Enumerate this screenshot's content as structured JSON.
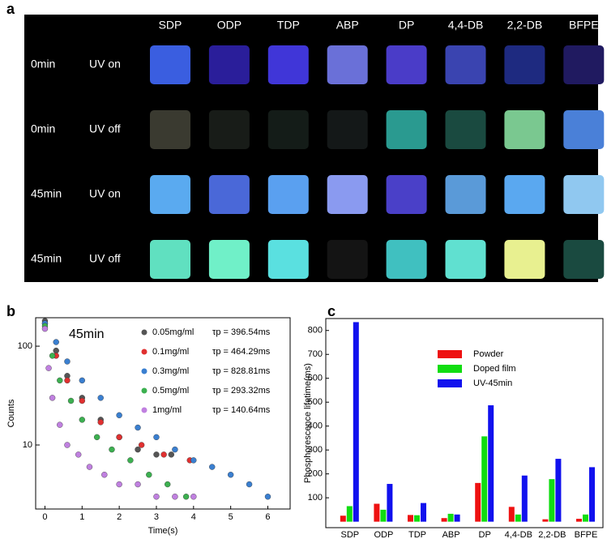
{
  "photo": {
    "label": "a",
    "columns": [
      "SDP",
      "ODP",
      "TDP",
      "ABP",
      "DP",
      "4,4-DB",
      "2,2-DB",
      "BFPE"
    ],
    "rows": [
      {
        "time": "0min",
        "state": "UV on",
        "colors": [
          "#3a5ee0",
          "#2a1e9a",
          "#4036d8",
          "#6a70d8",
          "#4a3cc8",
          "#3a44b0",
          "#1e2a80",
          "#201a60"
        ]
      },
      {
        "time": "0min",
        "state": "UV off",
        "colors": [
          "#3a3a30",
          "#181c18",
          "#141c18",
          "#141818",
          "#2a9a90",
          "#1a4a40",
          "#7ac890",
          "#4a80d8"
        ]
      },
      {
        "time": "45min",
        "state": "UV on",
        "colors": [
          "#5aaaf0",
          "#4a68d8",
          "#5aa0f0",
          "#8a9af0",
          "#4a40c8",
          "#5a9ad8",
          "#5aa8f0",
          "#90c8f0"
        ]
      },
      {
        "time": "45min",
        "state": "UV off",
        "colors": [
          "#60e0c0",
          "#70f0c8",
          "#5ae0e0",
          "#141414",
          "#40c0c0",
          "#60e0d0",
          "#e8f090",
          "#1a4a40"
        ]
      }
    ]
  },
  "chart_data": [
    {
      "type": "scatter",
      "panel_label": "b",
      "annotation": "45min",
      "x_label": "Time(s)",
      "y_label": "Counts",
      "log_y": true,
      "xlim": [
        -0.25,
        6.6
      ],
      "xticks": [
        0,
        1,
        2,
        3,
        4,
        5,
        6
      ],
      "ylim": [
        2.25,
        194
      ],
      "yticks": [
        10,
        100
      ],
      "series": [
        {
          "name": "0.05mg/ml",
          "lifetime": "τp = 396.54ms",
          "color": "#555555",
          "x": [
            0,
            0.3,
            0.6,
            1,
            1.5,
            2,
            2.5,
            3,
            3.4
          ],
          "values": [
            180,
            90,
            50,
            30,
            18,
            12,
            9,
            8,
            8
          ]
        },
        {
          "name": "0.1mg/ml",
          "lifetime": "τp = 464.29ms",
          "color": "#e03030",
          "x": [
            0,
            0.3,
            0.6,
            1,
            1.5,
            2,
            2.6,
            3.2,
            3.9
          ],
          "values": [
            170,
            80,
            45,
            28,
            17,
            12,
            10,
            8,
            7
          ]
        },
        {
          "name": "0.3mg/ml",
          "lifetime": "τp = 828.81ms",
          "color": "#3a7fd0",
          "x": [
            0,
            0.3,
            0.6,
            1,
            1.5,
            2,
            2.5,
            3,
            3.5,
            4,
            4.5,
            5,
            5.5,
            6
          ],
          "values": [
            170,
            110,
            70,
            45,
            30,
            20,
            15,
            12,
            9,
            7,
            6,
            5,
            4,
            3
          ]
        },
        {
          "name": "0.5mg/ml",
          "lifetime": "τp = 293.32ms",
          "color": "#3cb050",
          "x": [
            0,
            0.2,
            0.4,
            0.7,
            1,
            1.4,
            1.8,
            2.3,
            2.8,
            3.3,
            3.8
          ],
          "values": [
            160,
            80,
            45,
            28,
            18,
            12,
            9,
            7,
            5,
            4,
            3
          ]
        },
        {
          "name": "1mg/ml",
          "lifetime": "τp = 140.64ms",
          "color": "#c080e0",
          "x": [
            0,
            0.1,
            0.2,
            0.4,
            0.6,
            0.9,
            1.2,
            1.6,
            2,
            2.5,
            3,
            3.5,
            4
          ],
          "values": [
            150,
            60,
            30,
            16,
            10,
            8,
            6,
            5,
            4,
            4,
            3,
            3,
            3
          ]
        }
      ]
    },
    {
      "type": "bar",
      "panel_label": "c",
      "y_label": "Phosphorescence lifetime(ms)",
      "categories": [
        "SDP",
        "ODP",
        "TDP",
        "ABP",
        "DP",
        "4,4-DB",
        "2,2-DB",
        "BFPE"
      ],
      "ylim": [
        -25,
        850
      ],
      "yticks": [
        100,
        200,
        300,
        400,
        500,
        600,
        700,
        800
      ],
      "series": [
        {
          "name": "Powder",
          "color": "#ee1111",
          "values": [
            25,
            75,
            28,
            15,
            162,
            62,
            10,
            12
          ]
        },
        {
          "name": "Doped film",
          "color": "#11dd11",
          "values": [
            65,
            50,
            27,
            33,
            357,
            30,
            178,
            30
          ]
        },
        {
          "name": "UV-45min",
          "color": "#1111ee",
          "values": [
            835,
            158,
            78,
            30,
            487,
            193,
            263,
            228
          ]
        }
      ]
    }
  ]
}
